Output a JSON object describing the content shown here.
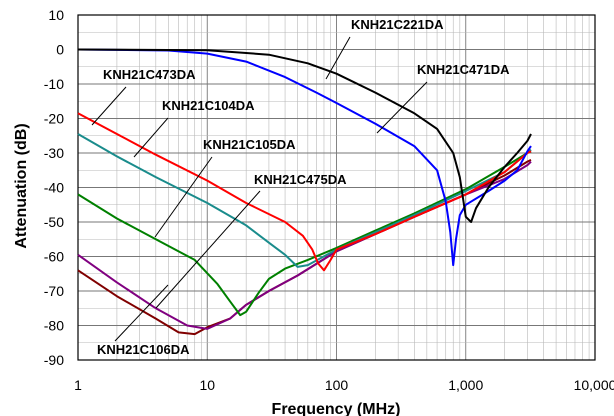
{
  "chart_data": {
    "type": "line",
    "xlabel": "Frequency (MHz)",
    "ylabel": "Attenuation (dB)",
    "xscale": "log",
    "xlim": [
      1,
      10000
    ],
    "ylim": [
      -90,
      10
    ],
    "grid": true,
    "x_ticks": [
      1,
      10,
      100,
      1000,
      10000
    ],
    "x_tick_labels": [
      "1",
      "10",
      "100",
      "1,000",
      "10,000"
    ],
    "y_ticks": [
      10,
      0,
      -10,
      -20,
      -30,
      -40,
      -50,
      -60,
      -70,
      -80,
      -90
    ],
    "y_tick_labels": [
      "10",
      "0",
      "-10",
      "-20",
      "-30",
      "-40",
      "-50",
      "-60",
      "-70",
      "-80",
      "-90"
    ],
    "series": [
      {
        "name": "KNH21C221DA",
        "color": "#000000",
        "points": [
          [
            1,
            0
          ],
          [
            10,
            -0.2
          ],
          [
            30,
            -1.5
          ],
          [
            60,
            -4
          ],
          [
            100,
            -7
          ],
          [
            200,
            -12.5
          ],
          [
            400,
            -18.5
          ],
          [
            600,
            -23
          ],
          [
            800,
            -30
          ],
          [
            900,
            -37
          ],
          [
            1000,
            -48.5
          ],
          [
            1100,
            -50
          ],
          [
            1200,
            -46
          ],
          [
            1500,
            -40
          ],
          [
            2000,
            -34
          ],
          [
            2500,
            -30
          ],
          [
            3000,
            -26.5
          ],
          [
            3200,
            -24.5
          ]
        ]
      },
      {
        "name": "KNH21C471DA",
        "color": "#0000ff",
        "points": [
          [
            1,
            0
          ],
          [
            5,
            -0.3
          ],
          [
            10,
            -1.2
          ],
          [
            20,
            -3.5
          ],
          [
            40,
            -8
          ],
          [
            70,
            -12.5
          ],
          [
            100,
            -15.5
          ],
          [
            200,
            -21.5
          ],
          [
            400,
            -28
          ],
          [
            600,
            -35
          ],
          [
            700,
            -44
          ],
          [
            760,
            -53
          ],
          [
            800,
            -62.5
          ],
          [
            840,
            -55
          ],
          [
            900,
            -48
          ],
          [
            1000,
            -45
          ],
          [
            1500,
            -41
          ],
          [
            2000,
            -38
          ],
          [
            2500,
            -35
          ],
          [
            3000,
            -29.5
          ],
          [
            3200,
            -28
          ]
        ]
      },
      {
        "name": "KNH21C473DA",
        "color": "#ff0000",
        "points": [
          [
            1,
            -18.5
          ],
          [
            2,
            -24.5
          ],
          [
            4,
            -30.5
          ],
          [
            10,
            -38
          ],
          [
            20,
            -44.5
          ],
          [
            40,
            -50
          ],
          [
            55,
            -54
          ],
          [
            65,
            -58
          ],
          [
            72,
            -62
          ],
          [
            80,
            -64
          ],
          [
            90,
            -61
          ],
          [
            100,
            -58
          ],
          [
            200,
            -53.5
          ],
          [
            400,
            -48.5
          ],
          [
            1000,
            -42
          ],
          [
            2000,
            -35.5
          ],
          [
            3000,
            -30
          ],
          [
            3200,
            -29.5
          ]
        ]
      },
      {
        "name": "KNH21C104DA",
        "color": "#1a8c8c",
        "points": [
          [
            1,
            -24.5
          ],
          [
            2,
            -31
          ],
          [
            4,
            -37
          ],
          [
            10,
            -44.5
          ],
          [
            20,
            -51
          ],
          [
            30,
            -56
          ],
          [
            40,
            -59.5
          ],
          [
            50,
            -63
          ],
          [
            60,
            -62.5
          ],
          [
            100,
            -58
          ],
          [
            200,
            -53
          ],
          [
            400,
            -48
          ],
          [
            1000,
            -41
          ],
          [
            2000,
            -35.5
          ],
          [
            3000,
            -30
          ],
          [
            3200,
            -29
          ]
        ]
      },
      {
        "name": "KNH21C105DA",
        "color": "#008000",
        "points": [
          [
            1,
            -42
          ],
          [
            2,
            -49
          ],
          [
            4,
            -55
          ],
          [
            8,
            -61
          ],
          [
            12,
            -68
          ],
          [
            15,
            -73
          ],
          [
            18,
            -77
          ],
          [
            20,
            -76
          ],
          [
            25,
            -70.5
          ],
          [
            30,
            -66.5
          ],
          [
            40,
            -63.5
          ],
          [
            60,
            -61
          ],
          [
            100,
            -57.5
          ],
          [
            200,
            -52.5
          ],
          [
            400,
            -47.5
          ],
          [
            1000,
            -40.5
          ],
          [
            2000,
            -34
          ],
          [
            3000,
            -30
          ],
          [
            3200,
            -29.5
          ]
        ]
      },
      {
        "name": "KNH21C475DA",
        "color": "#800080",
        "points": [
          [
            1,
            -59.5
          ],
          [
            2,
            -67.5
          ],
          [
            4,
            -75
          ],
          [
            7,
            -80
          ],
          [
            10,
            -81
          ],
          [
            15,
            -78
          ],
          [
            20,
            -74
          ],
          [
            30,
            -70
          ],
          [
            50,
            -65.5
          ],
          [
            100,
            -58.5
          ],
          [
            200,
            -53.5
          ],
          [
            400,
            -48.5
          ],
          [
            1000,
            -42
          ],
          [
            2000,
            -37.5
          ],
          [
            3000,
            -33.5
          ],
          [
            3200,
            -32.5
          ]
        ]
      },
      {
        "name": "KNH21C106DA",
        "color": "#800000",
        "points": [
          [
            1,
            -64
          ],
          [
            2,
            -71.5
          ],
          [
            4,
            -78
          ],
          [
            6,
            -82
          ],
          [
            8,
            -82.5
          ],
          [
            10,
            -80.5
          ],
          [
            15,
            -78
          ],
          [
            20,
            -74
          ],
          [
            30,
            -70
          ],
          [
            50,
            -65.5
          ],
          [
            100,
            -58.5
          ],
          [
            200,
            -53.5
          ],
          [
            400,
            -48.5
          ],
          [
            1000,
            -42
          ],
          [
            2000,
            -36.5
          ],
          [
            3000,
            -32.5
          ],
          [
            3200,
            -32
          ]
        ]
      }
    ],
    "annotations": [
      {
        "text": "KNH21C221DA",
        "series": "KNH21C221DA"
      },
      {
        "text": "KNH21C471DA",
        "series": "KNH21C471DA"
      },
      {
        "text": "KNH21C473DA",
        "series": "KNH21C473DA"
      },
      {
        "text": "KNH21C104DA",
        "series": "KNH21C104DA"
      },
      {
        "text": "KNH21C105DA",
        "series": "KNH21C105DA"
      },
      {
        "text": "KNH21C475DA",
        "series": "KNH21C475DA"
      },
      {
        "text": "KNH21C106DA",
        "series": "KNH21C106DA"
      }
    ]
  }
}
